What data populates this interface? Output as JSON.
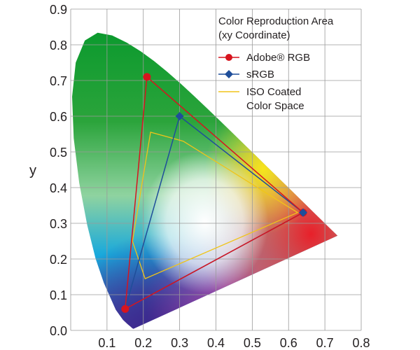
{
  "chart_data": {
    "type": "scatter",
    "ylabel": "y",
    "xlim": [
      0.0,
      0.8
    ],
    "ylim": [
      0.0,
      0.9
    ],
    "x_ticks": [
      "0.1",
      "0.2",
      "0.3",
      "0.4",
      "0.5",
      "0.6",
      "0.7",
      "0.8"
    ],
    "y_ticks": [
      "0.0",
      "0.1",
      "0.2",
      "0.3",
      "0.4",
      "0.5",
      "0.6",
      "0.7",
      "0.8",
      "0.9"
    ],
    "grid": true,
    "legend": {
      "position": "top-right",
      "title_lines": [
        "Color Reproduction Area",
        "(xy Coordinate)"
      ]
    },
    "series": [
      {
        "name": "Adobe® RGB",
        "color": "#d7141e",
        "marker": "circle",
        "points": [
          [
            0.64,
            0.33
          ],
          [
            0.21,
            0.71
          ],
          [
            0.15,
            0.06
          ]
        ]
      },
      {
        "name": "sRGB",
        "color": "#1f4e9a",
        "marker": "diamond",
        "points": [
          [
            0.64,
            0.33
          ],
          [
            0.3,
            0.6
          ],
          [
            0.15,
            0.06
          ]
        ]
      },
      {
        "name_lines": [
          "ISO Coated",
          "Color Space"
        ],
        "color": "#f0c419",
        "marker": "none",
        "points": [
          [
            0.22,
            0.555
          ],
          [
            0.31,
            0.53
          ],
          [
            0.625,
            0.33
          ],
          [
            0.205,
            0.145
          ],
          [
            0.17,
            0.25
          ]
        ]
      }
    ]
  }
}
